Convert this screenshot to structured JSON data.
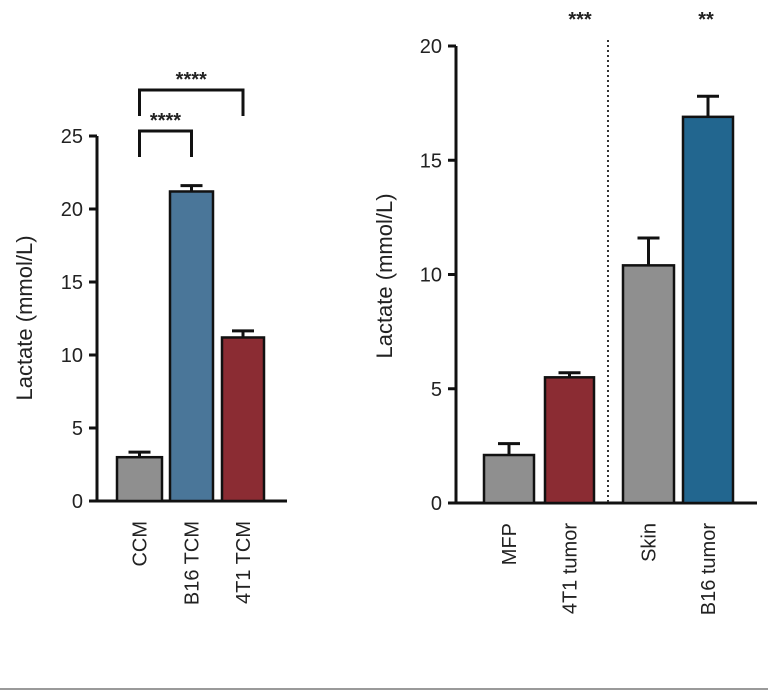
{
  "chart_data": [
    {
      "type": "bar",
      "ylabel": "Lactate (mmol/L)",
      "ylim": [
        0,
        25
      ],
      "yticks": [
        0,
        5,
        10,
        15,
        20,
        25
      ],
      "categories": [
        "CCM",
        "B16 TCM",
        "4T1 TCM"
      ],
      "values": [
        3.0,
        21.2,
        11.2
      ],
      "errors": [
        0.35,
        0.4,
        0.45
      ],
      "colors": [
        "#8f8f8f",
        "#4a7699",
        "#8b2c33"
      ],
      "significance": [
        {
          "from": "CCM",
          "to": "B16 TCM",
          "label": "****"
        },
        {
          "from": "CCM",
          "to": "4T1 TCM",
          "label": "****"
        }
      ]
    },
    {
      "type": "bar",
      "ylabel": "Lactate (mmol/L)",
      "ylim": [
        0,
        20
      ],
      "yticks": [
        0,
        5,
        10,
        15,
        20
      ],
      "categories": [
        "MFP",
        "4T1 tumor",
        "Skin",
        "B16 tumor"
      ],
      "values": [
        2.1,
        5.5,
        10.4,
        16.9
      ],
      "errors": [
        0.5,
        0.2,
        1.2,
        0.9
      ],
      "colors": [
        "#8f8f8f",
        "#8b2c33",
        "#8f8f8f",
        "#22668f"
      ],
      "separator": "dotted line between 4T1 tumor and Skin",
      "significance": [
        {
          "group": "4T1 tumor",
          "label": "***"
        },
        {
          "group": "B16 tumor",
          "label": "**"
        }
      ]
    }
  ]
}
